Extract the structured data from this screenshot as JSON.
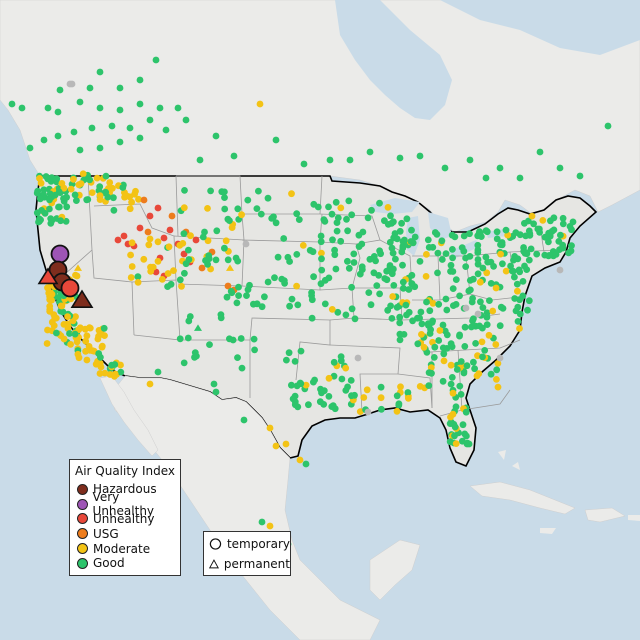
{
  "map": {
    "colors": {
      "ocean": "#c9dbe8",
      "land": "#ebebe9",
      "land_usa": "#e6e6e3",
      "border": "#000000",
      "state_line": "#9a9a9a",
      "Hazardous": "#7e2d1d",
      "Very Unhealthy": "#9e55b5",
      "Unhealthy": "#e8483a",
      "USG": "#ed7c1c",
      "Moderate": "#f3c315",
      "Good": "#2dc46b",
      "NoData": "#b8b8b8"
    }
  },
  "legend": {
    "title": "Air Quality Index",
    "items": [
      {
        "label": "Hazardous",
        "color": "#7e2d1d"
      },
      {
        "label": "Very Unhealthy",
        "color": "#9e55b5"
      },
      {
        "label": "Unhealthy",
        "color": "#e8483a"
      },
      {
        "label": "USG",
        "color": "#ed7c1c"
      },
      {
        "label": "Moderate",
        "color": "#f3c315"
      },
      {
        "label": "Good",
        "color": "#2dc46b"
      }
    ]
  },
  "type_legend": {
    "temporary": "temporary",
    "permanent": "permanent"
  }
}
